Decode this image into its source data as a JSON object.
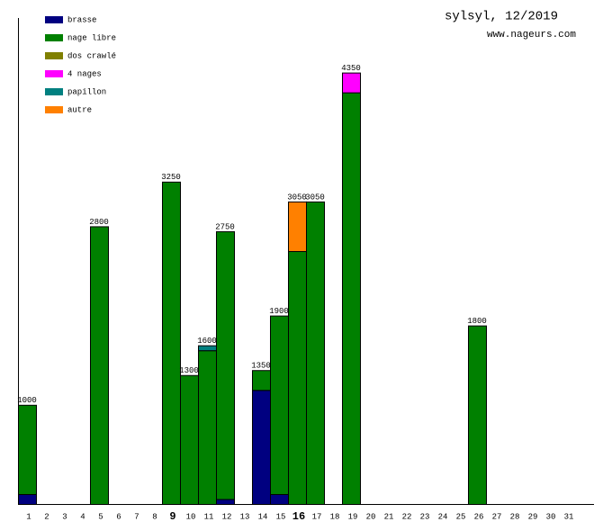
{
  "chart_data": {
    "type": "bar",
    "stacked": true,
    "title": "sylsyl, 12/2019",
    "subtitle": "www.nageurs.com",
    "categories": [
      "1",
      "2",
      "3",
      "4",
      "5",
      "6",
      "7",
      "8",
      "9",
      "10",
      "11",
      "12",
      "13",
      "14",
      "15",
      "16",
      "17",
      "18",
      "19",
      "20",
      "21",
      "22",
      "23",
      "24",
      "25",
      "26",
      "27",
      "28",
      "29",
      "30",
      "31"
    ],
    "series": [
      {
        "name": "brasse",
        "color": "#000080",
        "values": [
          100,
          null,
          null,
          null,
          null,
          null,
          null,
          null,
          null,
          null,
          null,
          50,
          null,
          1150,
          100,
          null,
          null,
          null,
          null,
          null,
          null,
          null,
          null,
          null,
          null,
          null,
          null,
          null,
          null,
          null,
          null
        ]
      },
      {
        "name": "nage libre",
        "color": "#008000",
        "values": [
          900,
          null,
          null,
          null,
          2800,
          null,
          null,
          null,
          3250,
          1300,
          1550,
          2700,
          null,
          200,
          1800,
          2550,
          3050,
          null,
          4150,
          null,
          null,
          null,
          null,
          null,
          null,
          1800,
          null,
          null,
          null,
          null,
          null
        ]
      },
      {
        "name": "dos crawlé",
        "color": "#808000",
        "values": [
          null,
          null,
          null,
          null,
          null,
          null,
          null,
          null,
          null,
          null,
          null,
          null,
          null,
          null,
          null,
          null,
          null,
          null,
          null,
          null,
          null,
          null,
          null,
          null,
          null,
          null,
          null,
          null,
          null,
          null,
          null
        ]
      },
      {
        "name": "4 nages",
        "color": "#ff00ff",
        "values": [
          null,
          null,
          null,
          null,
          null,
          null,
          null,
          null,
          null,
          null,
          null,
          null,
          null,
          null,
          null,
          null,
          null,
          null,
          200,
          null,
          null,
          null,
          null,
          null,
          null,
          null,
          null,
          null,
          null,
          null,
          null
        ]
      },
      {
        "name": "papillon",
        "color": "#008080",
        "values": [
          null,
          null,
          null,
          null,
          null,
          null,
          null,
          null,
          null,
          null,
          50,
          null,
          null,
          null,
          null,
          null,
          null,
          null,
          null,
          null,
          null,
          null,
          null,
          null,
          null,
          null,
          null,
          null,
          null,
          null,
          null
        ]
      },
      {
        "name": "autre",
        "color": "#ff8000",
        "values": [
          null,
          null,
          null,
          null,
          null,
          null,
          null,
          null,
          null,
          null,
          null,
          null,
          null,
          null,
          null,
          500,
          null,
          null,
          null,
          null,
          null,
          null,
          null,
          null,
          null,
          null,
          null,
          null,
          null,
          null,
          null
        ]
      }
    ],
    "totals": [
      1000,
      null,
      null,
      null,
      2800,
      null,
      null,
      null,
      3250,
      1300,
      1600,
      2750,
      null,
      1350,
      1900,
      3050,
      3050,
      null,
      4350,
      null,
      null,
      null,
      null,
      null,
      null,
      1800,
      null,
      null,
      null,
      null,
      null
    ],
    "ylim": [
      0,
      4900
    ]
  }
}
